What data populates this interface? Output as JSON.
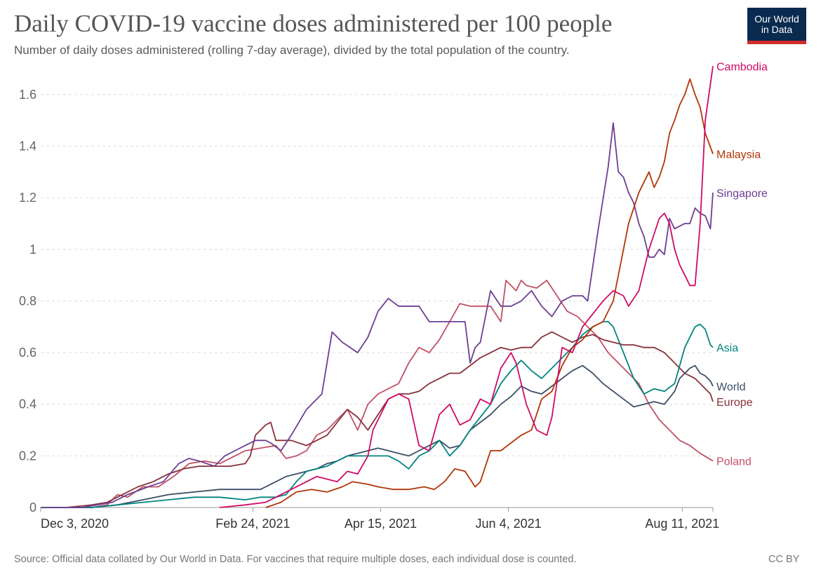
{
  "header": {
    "title": "Daily COVID-19 vaccine doses administered per 100 people",
    "subtitle": "Number of daily doses administered (rolling 7-day average), divided by the total population of the country."
  },
  "logo": {
    "line1": "Our World",
    "line2": "in Data"
  },
  "footer": {
    "source": "Source: Official data collated by Our World in Data. For vaccines that require multiple doses, each individual dose is counted.",
    "license": "CC BY"
  },
  "chart_data": {
    "type": "line",
    "title": "Daily COVID-19 vaccine doses administered per 100 people",
    "xlabel": "",
    "ylabel": "",
    "ylim": [
      0,
      1.7
    ],
    "xlim_days": [
      0,
      263
    ],
    "x_ticks": [
      {
        "label": "Dec 3, 2020",
        "day": 0
      },
      {
        "label": "Feb 24, 2021",
        "day": 83
      },
      {
        "label": "Apr 15, 2021",
        "day": 133
      },
      {
        "label": "Jun 4, 2021",
        "day": 183
      },
      {
        "label": "Aug 11, 2021",
        "day": 251
      }
    ],
    "y_ticks": [
      {
        "label": "0",
        "value": 0
      },
      {
        "label": "0.2",
        "value": 0.2
      },
      {
        "label": "0.4",
        "value": 0.4
      },
      {
        "label": "0.6",
        "value": 0.6
      },
      {
        "label": "0.8",
        "value": 0.8
      },
      {
        "label": "1",
        "value": 1.0
      },
      {
        "label": "1.2",
        "value": 1.2
      },
      {
        "label": "1.4",
        "value": 1.4
      },
      {
        "label": "1.6",
        "value": 1.6
      }
    ],
    "grid": true,
    "series": [
      {
        "name": "Cambodia",
        "color": "#cf0a66",
        "x": [
          70,
          80,
          88,
          92,
          98,
          104,
          108,
          112,
          116,
          120,
          124,
          128,
          130,
          136,
          140,
          144,
          148,
          152,
          156,
          160,
          164,
          168,
          172,
          176,
          180,
          184,
          186,
          190,
          194,
          198,
          200,
          204,
          208,
          212,
          216,
          220,
          224,
          228,
          230,
          234,
          238,
          242,
          244,
          246,
          248,
          250,
          254,
          256,
          258,
          260,
          263
        ],
        "y": [
          0,
          0.01,
          0.02,
          0.04,
          0.07,
          0.1,
          0.12,
          0.11,
          0.1,
          0.14,
          0.13,
          0.2,
          0.3,
          0.42,
          0.44,
          0.42,
          0.24,
          0.22,
          0.36,
          0.4,
          0.32,
          0.34,
          0.42,
          0.4,
          0.54,
          0.6,
          0.56,
          0.4,
          0.3,
          0.28,
          0.35,
          0.62,
          0.6,
          0.7,
          0.75,
          0.8,
          0.84,
          0.82,
          0.78,
          0.84,
          1.0,
          1.12,
          1.14,
          1.1,
          1.0,
          0.94,
          0.86,
          0.86,
          1.1,
          1.5,
          1.71
        ]
      },
      {
        "name": "Malaysia",
        "color": "#b13507",
        "x": [
          88,
          94,
          100,
          106,
          112,
          118,
          122,
          128,
          132,
          138,
          144,
          150,
          154,
          158,
          162,
          166,
          170,
          172,
          176,
          180,
          184,
          188,
          192,
          196,
          200,
          204,
          208,
          212,
          216,
          220,
          224,
          228,
          230,
          234,
          238,
          240,
          242,
          244,
          246,
          248,
          250,
          252,
          254,
          256,
          258,
          260,
          263
        ],
        "y": [
          0,
          0.02,
          0.06,
          0.07,
          0.06,
          0.08,
          0.1,
          0.09,
          0.08,
          0.07,
          0.07,
          0.08,
          0.07,
          0.1,
          0.15,
          0.14,
          0.08,
          0.1,
          0.22,
          0.22,
          0.25,
          0.28,
          0.3,
          0.42,
          0.45,
          0.55,
          0.62,
          0.65,
          0.7,
          0.72,
          0.8,
          1.0,
          1.1,
          1.22,
          1.3,
          1.24,
          1.28,
          1.34,
          1.45,
          1.5,
          1.56,
          1.6,
          1.66,
          1.6,
          1.55,
          1.45,
          1.37
        ]
      },
      {
        "name": "Singapore",
        "color": "#6d3e91",
        "x": [
          0,
          16,
          22,
          28,
          34,
          42,
          48,
          54,
          58,
          62,
          68,
          72,
          76,
          80,
          84,
          88,
          90,
          94,
          98,
          104,
          110,
          114,
          118,
          124,
          128,
          132,
          136,
          140,
          144,
          148,
          152,
          156,
          160,
          164,
          166,
          168,
          170,
          172,
          176,
          180,
          184,
          188,
          192,
          196,
          200,
          204,
          208,
          212,
          214,
          218,
          222,
          224,
          226,
          228,
          230,
          232,
          234,
          236,
          238,
          240,
          242,
          244,
          246,
          248,
          250,
          252,
          254,
          256,
          258,
          260,
          262,
          263
        ],
        "y": [
          0,
          0,
          0.01,
          0.02,
          0.05,
          0.08,
          0.1,
          0.17,
          0.19,
          0.18,
          0.16,
          0.2,
          0.22,
          0.24,
          0.26,
          0.26,
          0.25,
          0.22,
          0.28,
          0.38,
          0.44,
          0.68,
          0.64,
          0.6,
          0.66,
          0.76,
          0.81,
          0.78,
          0.78,
          0.78,
          0.72,
          0.72,
          0.72,
          0.72,
          0.72,
          0.56,
          0.62,
          0.64,
          0.84,
          0.78,
          0.78,
          0.8,
          0.84,
          0.78,
          0.74,
          0.8,
          0.82,
          0.82,
          0.8,
          1.07,
          1.32,
          1.49,
          1.3,
          1.28,
          1.22,
          1.18,
          1.1,
          1.05,
          0.97,
          0.97,
          1.0,
          0.98,
          1.12,
          1.08,
          1.09,
          1.1,
          1.1,
          1.16,
          1.14,
          1.13,
          1.08,
          1.22
        ]
      },
      {
        "name": "Asia",
        "color": "#00847e",
        "x": [
          0,
          20,
          30,
          40,
          50,
          60,
          70,
          80,
          86,
          92,
          96,
          100,
          104,
          108,
          112,
          116,
          120,
          124,
          128,
          132,
          136,
          140,
          144,
          148,
          152,
          156,
          160,
          164,
          168,
          172,
          176,
          180,
          184,
          188,
          192,
          196,
          200,
          204,
          208,
          212,
          216,
          220,
          222,
          224,
          228,
          232,
          236,
          240,
          244,
          248,
          252,
          256,
          258,
          260,
          262,
          263
        ],
        "y": [
          0,
          0,
          0.01,
          0.02,
          0.03,
          0.04,
          0.04,
          0.03,
          0.04,
          0.04,
          0.05,
          0.1,
          0.14,
          0.15,
          0.16,
          0.18,
          0.2,
          0.2,
          0.2,
          0.2,
          0.2,
          0.18,
          0.15,
          0.2,
          0.22,
          0.26,
          0.2,
          0.24,
          0.3,
          0.35,
          0.4,
          0.48,
          0.53,
          0.57,
          0.53,
          0.5,
          0.54,
          0.58,
          0.62,
          0.67,
          0.7,
          0.72,
          0.72,
          0.7,
          0.6,
          0.5,
          0.44,
          0.46,
          0.45,
          0.48,
          0.62,
          0.7,
          0.71,
          0.69,
          0.63,
          0.62
        ]
      },
      {
        "name": "World",
        "color": "#3c4e66",
        "x": [
          0,
          20,
          30,
          40,
          50,
          60,
          70,
          80,
          86,
          92,
          96,
          100,
          104,
          108,
          112,
          116,
          120,
          124,
          128,
          132,
          136,
          140,
          144,
          148,
          152,
          156,
          160,
          164,
          168,
          172,
          176,
          180,
          184,
          188,
          192,
          196,
          200,
          204,
          208,
          212,
          216,
          220,
          224,
          228,
          232,
          236,
          240,
          244,
          248,
          250,
          252,
          254,
          256,
          258,
          260,
          262,
          263
        ],
        "y": [
          0,
          0,
          0.01,
          0.03,
          0.05,
          0.06,
          0.07,
          0.07,
          0.07,
          0.1,
          0.12,
          0.13,
          0.14,
          0.15,
          0.17,
          0.18,
          0.2,
          0.21,
          0.22,
          0.23,
          0.22,
          0.21,
          0.2,
          0.22,
          0.24,
          0.26,
          0.23,
          0.24,
          0.3,
          0.33,
          0.36,
          0.4,
          0.43,
          0.47,
          0.45,
          0.44,
          0.47,
          0.5,
          0.53,
          0.55,
          0.52,
          0.48,
          0.45,
          0.42,
          0.39,
          0.4,
          0.41,
          0.4,
          0.45,
          0.5,
          0.52,
          0.54,
          0.55,
          0.52,
          0.51,
          0.49,
          0.47
        ]
      },
      {
        "name": "Europe",
        "color": "#883039",
        "x": [
          0,
          10,
          20,
          26,
          32,
          38,
          44,
          50,
          56,
          62,
          68,
          74,
          80,
          82,
          84,
          86,
          88,
          90,
          92,
          94,
          98,
          104,
          108,
          112,
          116,
          120,
          124,
          128,
          132,
          136,
          140,
          144,
          148,
          152,
          156,
          160,
          164,
          168,
          172,
          176,
          180,
          184,
          188,
          192,
          196,
          200,
          204,
          208,
          212,
          216,
          220,
          224,
          228,
          232,
          236,
          240,
          244,
          248,
          252,
          256,
          260,
          262,
          263
        ],
        "y": [
          0,
          0,
          0.01,
          0.02,
          0.05,
          0.08,
          0.1,
          0.13,
          0.15,
          0.16,
          0.16,
          0.16,
          0.17,
          0.2,
          0.28,
          0.3,
          0.32,
          0.33,
          0.26,
          0.26,
          0.26,
          0.24,
          0.26,
          0.28,
          0.33,
          0.38,
          0.35,
          0.3,
          0.36,
          0.42,
          0.44,
          0.44,
          0.45,
          0.48,
          0.5,
          0.52,
          0.52,
          0.55,
          0.58,
          0.6,
          0.62,
          0.61,
          0.62,
          0.62,
          0.66,
          0.68,
          0.66,
          0.64,
          0.66,
          0.67,
          0.65,
          0.64,
          0.63,
          0.63,
          0.62,
          0.62,
          0.6,
          0.56,
          0.52,
          0.5,
          0.46,
          0.44,
          0.41
        ]
      },
      {
        "name": "Poland",
        "color": "#c15065",
        "x": [
          0,
          20,
          26,
          30,
          34,
          40,
          46,
          52,
          58,
          64,
          70,
          76,
          80,
          86,
          92,
          96,
          100,
          104,
          108,
          112,
          116,
          120,
          124,
          128,
          132,
          136,
          140,
          144,
          148,
          152,
          156,
          160,
          164,
          168,
          172,
          176,
          180,
          182,
          184,
          186,
          188,
          190,
          194,
          198,
          202,
          206,
          210,
          214,
          218,
          222,
          226,
          230,
          234,
          238,
          242,
          246,
          250,
          254,
          258,
          263
        ],
        "y": [
          0,
          0,
          0.01,
          0.05,
          0.04,
          0.08,
          0.08,
          0.12,
          0.17,
          0.18,
          0.17,
          0.2,
          0.22,
          0.23,
          0.24,
          0.19,
          0.2,
          0.22,
          0.28,
          0.3,
          0.34,
          0.38,
          0.3,
          0.4,
          0.44,
          0.46,
          0.48,
          0.56,
          0.62,
          0.6,
          0.65,
          0.72,
          0.79,
          0.78,
          0.78,
          0.78,
          0.72,
          0.88,
          0.86,
          0.84,
          0.88,
          0.86,
          0.85,
          0.88,
          0.82,
          0.76,
          0.74,
          0.7,
          0.66,
          0.6,
          0.56,
          0.52,
          0.48,
          0.4,
          0.34,
          0.3,
          0.26,
          0.24,
          0.21,
          0.18
        ]
      }
    ]
  }
}
